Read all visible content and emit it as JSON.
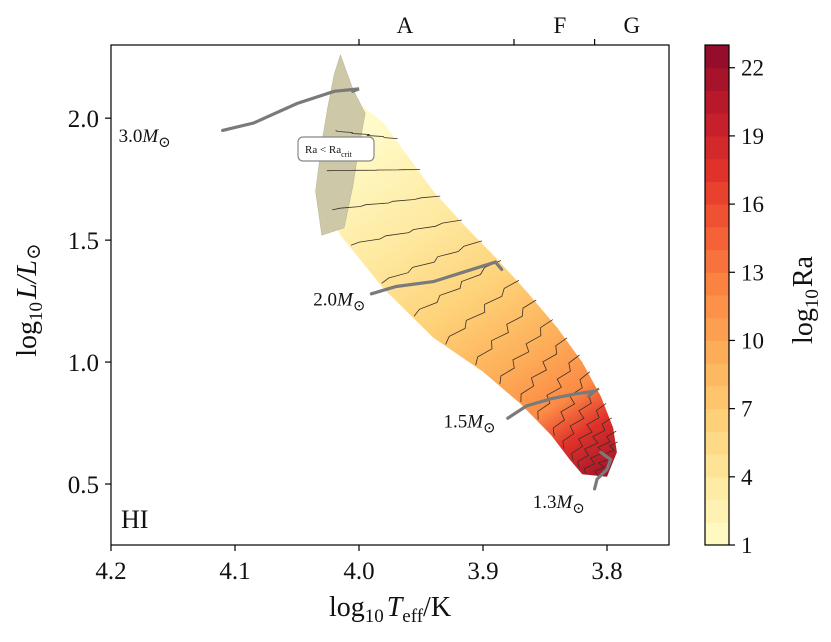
{
  "chart_data": {
    "type": "heatmap",
    "panel_label": "HI",
    "xlabel": {
      "prefix": "log",
      "sub": "10",
      "var": "T",
      "varsub": "eff",
      "suffix": "/K"
    },
    "ylabel": {
      "prefix": "log",
      "sub": "10",
      "main": "L/L",
      "sun": "⊙"
    },
    "xlim": [
      4.2,
      3.75
    ],
    "ylim": [
      0.25,
      2.3
    ],
    "x_ticks": [
      4.2,
      4.1,
      4.0,
      3.9,
      3.8
    ],
    "x_tick_labels": [
      "4.2",
      "4.1",
      "4.0",
      "3.9",
      "3.8"
    ],
    "y_ticks": [
      0.5,
      1.0,
      1.5,
      2.0
    ],
    "y_tick_labels": [
      "0.5",
      "1.0",
      "1.5",
      "2.0"
    ],
    "spectral_ticks": [
      4.0,
      3.875,
      3.81
    ],
    "spectral_labels": [
      {
        "label": "A",
        "teff": 3.963
      },
      {
        "label": "F",
        "teff": 3.838
      },
      {
        "label": "G",
        "teff": 3.78
      }
    ],
    "colorbar": {
      "label_prefix": "log",
      "label_sub": "10",
      "label_main": "Ra",
      "min": 1,
      "max": 23,
      "ticks": [
        1,
        4,
        7,
        10,
        13,
        16,
        19,
        22
      ],
      "tick_labels": [
        "1",
        "4",
        "7",
        "10",
        "13",
        "16",
        "19",
        "22"
      ],
      "colors": [
        "#fffbc8",
        "#fee9a0",
        "#fed178",
        "#fdb05a",
        "#fc8b45",
        "#f55e36",
        "#e0312a",
        "#bb1a2b",
        "#8c0a2a"
      ]
    },
    "region_outline": [
      [
        4.005,
        2.08
      ],
      [
        3.98,
        1.98
      ],
      [
        3.96,
        1.84
      ],
      [
        3.94,
        1.7
      ],
      [
        3.915,
        1.56
      ],
      [
        3.89,
        1.43
      ],
      [
        3.865,
        1.29
      ],
      [
        3.84,
        1.14
      ],
      [
        3.82,
        1.0
      ],
      [
        3.805,
        0.86
      ],
      [
        3.795,
        0.73
      ],
      [
        3.792,
        0.63
      ],
      [
        3.8,
        0.53
      ],
      [
        3.82,
        0.54
      ],
      [
        3.83,
        0.6
      ],
      [
        3.845,
        0.7
      ],
      [
        3.87,
        0.83
      ],
      [
        3.9,
        0.96
      ],
      [
        3.94,
        1.1
      ],
      [
        3.98,
        1.3
      ],
      [
        4.015,
        1.52
      ],
      [
        4.03,
        1.7
      ],
      [
        4.025,
        1.9
      ],
      [
        4.015,
        2.02
      ]
    ],
    "low_ra_region": [
      [
        4.015,
        2.26
      ],
      [
        4.005,
        2.12
      ],
      [
        3.995,
        2.02
      ],
      [
        4.0,
        1.88
      ],
      [
        4.005,
        1.72
      ],
      [
        4.012,
        1.55
      ],
      [
        4.03,
        1.52
      ],
      [
        4.035,
        1.7
      ],
      [
        4.03,
        1.9
      ],
      [
        4.025,
        2.05
      ],
      [
        4.02,
        2.18
      ]
    ],
    "tracks": [
      {
        "mass_label": "3.0",
        "label_anchor": [
          4.147,
          1.93
        ],
        "points": [
          [
            4.11,
            1.95
          ],
          [
            4.085,
            1.98
          ],
          [
            4.05,
            2.06
          ],
          [
            4.02,
            2.11
          ],
          [
            4.0,
            2.12
          ],
          [
            4.005,
            2.11
          ]
        ]
      },
      {
        "mass_label": "2.0",
        "label_anchor": [
          3.99,
          1.26
        ],
        "points": [
          [
            3.99,
            1.28
          ],
          [
            3.97,
            1.31
          ],
          [
            3.94,
            1.33
          ],
          [
            3.915,
            1.37
          ],
          [
            3.89,
            1.41
          ],
          [
            3.885,
            1.38
          ]
        ]
      },
      {
        "mass_label": "1.5",
        "label_anchor": [
          3.885,
          0.76
        ],
        "points": [
          [
            3.88,
            0.77
          ],
          [
            3.865,
            0.82
          ],
          [
            3.845,
            0.85
          ],
          [
            3.825,
            0.87
          ],
          [
            3.81,
            0.88
          ],
          [
            3.815,
            0.86
          ]
        ]
      },
      {
        "mass_label": "1.3",
        "label_anchor": [
          3.813,
          0.43
        ],
        "points": [
          [
            3.81,
            0.48
          ],
          [
            3.808,
            0.52
          ],
          [
            3.8,
            0.56
          ],
          [
            3.797,
            0.6
          ],
          [
            3.805,
            0.63
          ]
        ]
      }
    ],
    "annotation": {
      "text": "Ra < Ra",
      "sub": "crit",
      "position": [
        4.0,
        1.86
      ]
    }
  }
}
